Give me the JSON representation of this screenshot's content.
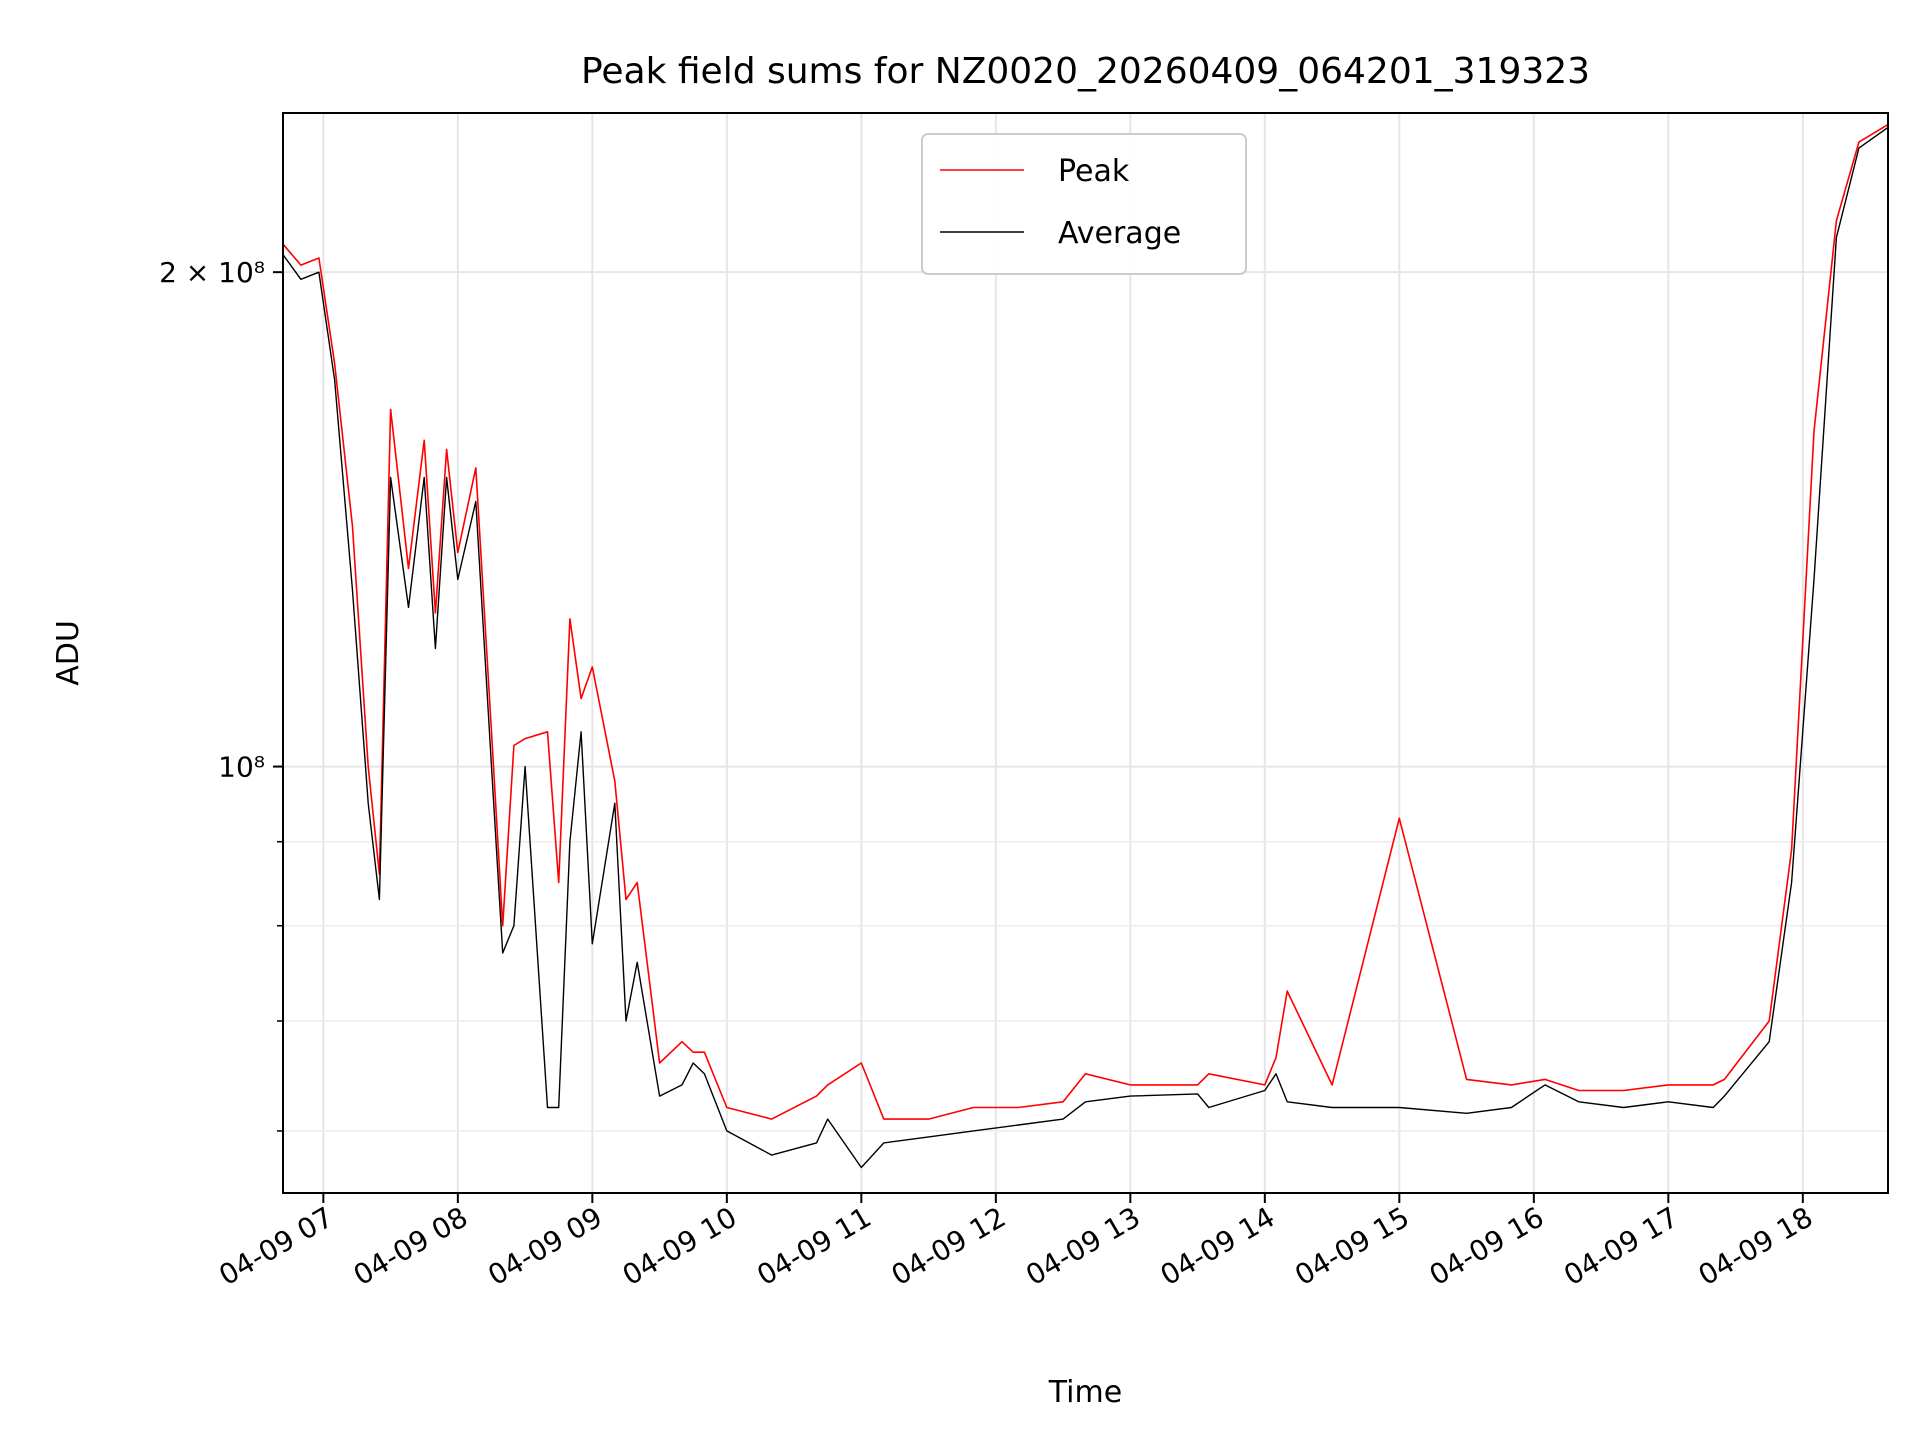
{
  "chart_data": {
    "type": "line",
    "title": "Peak field sums for NZ0020_20260409_064201_319323",
    "xlabel": "Time",
    "ylabel": "ADU",
    "y_scale": "log",
    "ylim": [
      55000000,
      250000000
    ],
    "xlim": [
      "04-09 06:42",
      "04-09 18:38"
    ],
    "grid": true,
    "legend_position": "top-center",
    "x_ticks": [
      "04-09 07",
      "04-09 08",
      "04-09 09",
      "04-09 10",
      "04-09 11",
      "04-09 12",
      "04-09 13",
      "04-09 14",
      "04-09 15",
      "04-09 16",
      "04-09 17",
      "04-09 18"
    ],
    "y_major_ticks": [
      {
        "value": 100000000,
        "label": "10⁸"
      },
      {
        "value": 200000000,
        "label": "2 × 10⁸"
      }
    ],
    "y_minor_ticks": [
      60000000,
      70000000,
      80000000,
      90000000
    ],
    "x": [
      "04-09 06:42",
      "04-09 06:50",
      "04-09 06:58",
      "04-09 07:05",
      "04-09 07:13",
      "04-09 07:20",
      "04-09 07:25",
      "04-09 07:30",
      "04-09 07:38",
      "04-09 07:45",
      "04-09 07:50",
      "04-09 07:55",
      "04-09 08:00",
      "04-09 08:08",
      "04-09 08:15",
      "04-09 08:20",
      "04-09 08:25",
      "04-09 08:30",
      "04-09 08:40",
      "04-09 08:45",
      "04-09 08:50",
      "04-09 08:55",
      "04-09 09:00",
      "04-09 09:10",
      "04-09 09:15",
      "04-09 09:20",
      "04-09 09:30",
      "04-09 09:40",
      "04-09 09:45",
      "04-09 09:50",
      "04-09 10:00",
      "04-09 10:20",
      "04-09 10:40",
      "04-09 10:45",
      "04-09 11:00",
      "04-09 11:10",
      "04-09 11:30",
      "04-09 11:50",
      "04-09 12:10",
      "04-09 12:30",
      "04-09 12:40",
      "04-09 13:00",
      "04-09 13:30",
      "04-09 13:35",
      "04-09 14:00",
      "04-09 14:05",
      "04-09 14:10",
      "04-09 14:30",
      "04-09 15:00",
      "04-09 15:30",
      "04-09 15:50",
      "04-09 16:05",
      "04-09 16:20",
      "04-09 16:40",
      "04-09 17:00",
      "04-09 17:20",
      "04-09 17:25",
      "04-09 17:45",
      "04-09 17:55",
      "04-09 18:05",
      "04-09 18:15",
      "04-09 18:25",
      "04-09 18:38"
    ],
    "series": [
      {
        "name": "Average",
        "color": "#000000",
        "values": [
          205000000,
          198000000,
          200000000,
          172000000,
          128000000,
          95000000,
          83000000,
          150000000,
          125000000,
          150000000,
          118000000,
          150000000,
          130000000,
          145000000,
          100000000,
          77000000,
          80000000,
          100000000,
          62000000,
          62000000,
          90000000,
          105000000,
          78000000,
          95000000,
          70000000,
          76000000,
          63000000,
          64000000,
          66000000,
          65000000,
          60000000,
          58000000,
          59000000,
          61000000,
          57000000,
          59000000,
          59500000,
          60000000,
          60500000,
          61000000,
          62500000,
          63000000,
          63200000,
          62000000,
          63500000,
          65000000,
          62500000,
          62000000,
          62000000,
          61500000,
          62000000,
          64000000,
          62500000,
          62000000,
          62500000,
          62000000,
          63000000,
          68000000,
          85000000,
          130000000,
          210000000,
          238000000,
          245000000
        ]
      },
      {
        "name": "Peak",
        "color": "#ff0000",
        "values": [
          208000000,
          202000000,
          204000000,
          176000000,
          140000000,
          100000000,
          86000000,
          165000000,
          132000000,
          158000000,
          124000000,
          156000000,
          135000000,
          152000000,
          105000000,
          80000000,
          103000000,
          104000000,
          105000000,
          85000000,
          123000000,
          110000000,
          115000000,
          98000000,
          83000000,
          85000000,
          66000000,
          68000000,
          67000000,
          67000000,
          62000000,
          61000000,
          63000000,
          64000000,
          66000000,
          61000000,
          61000000,
          62000000,
          62000000,
          62500000,
          65000000,
          64000000,
          64000000,
          65000000,
          64000000,
          66500000,
          73000000,
          64000000,
          93000000,
          64500000,
          64000000,
          64500000,
          63500000,
          63500000,
          64000000,
          64000000,
          64500000,
          70000000,
          89000000,
          160000000,
          215000000,
          240000000,
          246000000
        ]
      }
    ]
  }
}
